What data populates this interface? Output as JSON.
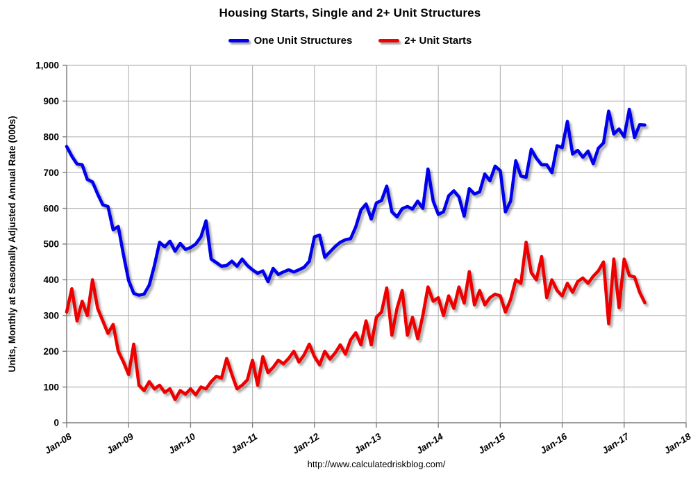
{
  "header": {
    "title": "Housing Starts, Single and 2+ Unit Structures"
  },
  "footer": {
    "url": "http://www.calculatedriskblog.com/"
  },
  "chart_data": {
    "type": "line",
    "title": "Housing Starts, Single and 2+ Unit Structures",
    "xlabel": "",
    "ylabel": "Units, Monthly at Seasonally Adjusted Annual Rate (000s)",
    "ylim": [
      0,
      1000
    ],
    "x_span_months": 120,
    "grid": true,
    "legend_position": "top",
    "y_tick_labels": [
      "0",
      "100",
      "200",
      "300",
      "400",
      "500",
      "600",
      "700",
      "800",
      "900",
      "1,000"
    ],
    "x_tick_labels": [
      "Jan-08",
      "Jan-09",
      "Jan-10",
      "Jan-11",
      "Jan-12",
      "Jan-13",
      "Jan-14",
      "Jan-15",
      "Jan-16",
      "Jan-17",
      "Jan-18"
    ],
    "months": [
      "Jan-08",
      "Feb-08",
      "Mar-08",
      "Apr-08",
      "May-08",
      "Jun-08",
      "Jul-08",
      "Aug-08",
      "Sep-08",
      "Oct-08",
      "Nov-08",
      "Dec-08",
      "Jan-09",
      "Feb-09",
      "Mar-09",
      "Apr-09",
      "May-09",
      "Jun-09",
      "Jul-09",
      "Aug-09",
      "Sep-09",
      "Oct-09",
      "Nov-09",
      "Dec-09",
      "Jan-10",
      "Feb-10",
      "Mar-10",
      "Apr-10",
      "May-10",
      "Jun-10",
      "Jul-10",
      "Aug-10",
      "Sep-10",
      "Oct-10",
      "Nov-10",
      "Dec-10",
      "Jan-11",
      "Feb-11",
      "Mar-11",
      "Apr-11",
      "May-11",
      "Jun-11",
      "Jul-11",
      "Aug-11",
      "Sep-11",
      "Oct-11",
      "Nov-11",
      "Dec-11",
      "Jan-12",
      "Feb-12",
      "Mar-12",
      "Apr-12",
      "May-12",
      "Jun-12",
      "Jul-12",
      "Aug-12",
      "Sep-12",
      "Oct-12",
      "Nov-12",
      "Dec-12",
      "Jan-13",
      "Feb-13",
      "Mar-13",
      "Apr-13",
      "May-13",
      "Jun-13",
      "Jul-13",
      "Aug-13",
      "Sep-13",
      "Oct-13",
      "Nov-13",
      "Dec-13",
      "Jan-14",
      "Feb-14",
      "Mar-14",
      "Apr-14",
      "May-14",
      "Jun-14",
      "Jul-14",
      "Aug-14",
      "Sep-14",
      "Oct-14",
      "Nov-14",
      "Dec-14",
      "Jan-15",
      "Feb-15",
      "Mar-15",
      "Apr-15",
      "May-15",
      "Jun-15",
      "Jul-15",
      "Aug-15",
      "Sep-15",
      "Oct-15",
      "Nov-15",
      "Dec-15",
      "Jan-16",
      "Feb-16",
      "Mar-16",
      "Apr-16",
      "May-16",
      "Jun-16",
      "Jul-16",
      "Aug-16",
      "Sep-16",
      "Oct-16",
      "Nov-16",
      "Dec-16",
      "Jan-17",
      "Feb-17",
      "Mar-17",
      "Apr-17",
      "May-17"
    ],
    "series": [
      {
        "name": "One Unit Structures",
        "color": "#0000ee",
        "values": [
          773,
          746,
          724,
          722,
          681,
          674,
          640,
          610,
          605,
          540,
          549,
          470,
          398,
          362,
          357,
          360,
          385,
          440,
          505,
          492,
          508,
          480,
          502,
          485,
          490,
          500,
          520,
          565,
          458,
          448,
          438,
          440,
          452,
          438,
          458,
          440,
          428,
          418,
          425,
          395,
          432,
          415,
          422,
          428,
          422,
          428,
          435,
          452,
          520,
          525,
          463,
          478,
          493,
          505,
          512,
          515,
          548,
          595,
          612,
          570,
          615,
          622,
          662,
          590,
          576,
          599,
          605,
          598,
          620,
          600,
          710,
          620,
          583,
          590,
          635,
          649,
          632,
          578,
          655,
          640,
          646,
          696,
          677,
          718,
          705,
          590,
          620,
          733,
          690,
          687,
          765,
          740,
          722,
          722,
          700,
          775,
          770,
          843,
          752,
          762,
          743,
          760,
          725,
          768,
          783,
          872,
          808,
          822,
          800,
          877,
          798,
          834,
          833
        ]
      },
      {
        "name": "2+ Unit Starts",
        "color": "#ee0000",
        "values": [
          310,
          375,
          285,
          340,
          300,
          400,
          320,
          285,
          250,
          275,
          200,
          170,
          135,
          220,
          105,
          90,
          115,
          95,
          105,
          85,
          95,
          65,
          90,
          80,
          95,
          78,
          100,
          95,
          115,
          130,
          125,
          180,
          135,
          95,
          105,
          120,
          175,
          105,
          185,
          140,
          155,
          175,
          165,
          180,
          200,
          170,
          190,
          220,
          185,
          162,
          200,
          178,
          195,
          218,
          192,
          232,
          252,
          218,
          285,
          218,
          295,
          310,
          377,
          245,
          320,
          370,
          245,
          295,
          235,
          300,
          380,
          340,
          350,
          300,
          355,
          320,
          380,
          335,
          423,
          330,
          370,
          330,
          350,
          360,
          355,
          310,
          345,
          400,
          390,
          505,
          420,
          400,
          465,
          350,
          400,
          370,
          355,
          390,
          365,
          395,
          405,
          390,
          410,
          425,
          450,
          277,
          458,
          322,
          458,
          412,
          408,
          365,
          336
        ]
      }
    ],
    "colors": {
      "gridline": "#b7b7b7",
      "axis": "#7f7f7f",
      "text": "#000000"
    }
  }
}
